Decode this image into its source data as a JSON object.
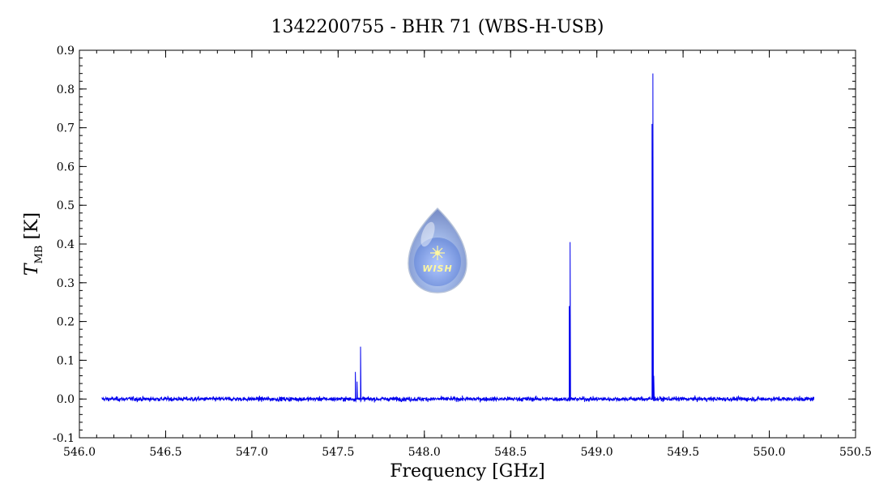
{
  "chart_data": {
    "type": "line",
    "title": "1342200755 - BHR 71 (WBS-H-USB)",
    "xlabel": "Frequency [GHz]",
    "ylabel": {
      "symbol": "T",
      "subscript": "MB",
      "unit": "[K]"
    },
    "xlim": [
      546.0,
      550.5
    ],
    "ylim": [
      -0.1,
      0.9
    ],
    "xticks": [
      "546.0",
      "546.5",
      "547.0",
      "547.5",
      "548.0",
      "548.5",
      "549.0",
      "549.5",
      "550.0",
      "550.5"
    ],
    "yticks": [
      "-0.1",
      "0.0",
      "0.1",
      "0.2",
      "0.3",
      "0.4",
      "0.5",
      "0.6",
      "0.7",
      "0.8",
      "0.9"
    ],
    "grid": false,
    "series": [
      {
        "color": "#0000ee",
        "x_range": [
          546.13,
          550.26
        ],
        "baseline": 0.0,
        "noise_rms": 0.004,
        "lines": [
          {
            "x": 547.6,
            "peak": 0.07
          },
          {
            "x": 547.61,
            "peak": 0.045
          },
          {
            "x": 547.63,
            "peak": 0.135
          },
          {
            "x": 548.84,
            "peak": 0.24
          },
          {
            "x": 548.845,
            "peak": 0.405
          },
          {
            "x": 549.32,
            "peak": 0.71
          },
          {
            "x": 549.325,
            "peak": 0.84
          },
          {
            "x": 549.33,
            "peak": 0.06
          }
        ]
      }
    ]
  },
  "logo": {
    "text": "WISH"
  },
  "colors": {
    "series": "#0000ee",
    "axes": "#000000"
  }
}
